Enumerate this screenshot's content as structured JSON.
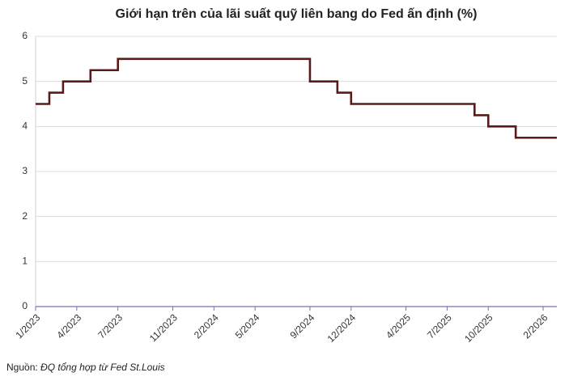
{
  "chart_data": {
    "type": "line",
    "title": "Giới hạn trên của lãi suất quỹ liên bang do Fed ấn định (%)",
    "x": [
      "1/2023",
      "2/2023",
      "3/2023",
      "5/2023",
      "7/2023",
      "9/2024",
      "11/2024",
      "12/2024",
      "9/2025",
      "10/2025",
      "12/2025",
      "3/2026"
    ],
    "series": [
      {
        "name": "Giới hạn trên",
        "color": "#5b1a1a",
        "values": [
          4.5,
          4.75,
          5.0,
          5.25,
          5.5,
          5.0,
          4.75,
          4.5,
          4.25,
          4.0,
          3.75,
          3.75
        ]
      }
    ],
    "step": true,
    "xlim": [
      "1/2023",
      "3/2026"
    ],
    "xticks": [
      "1/2023",
      "4/2023",
      "7/2023",
      "11/2023",
      "2/2024",
      "5/2024",
      "9/2024",
      "12/2024",
      "4/2025",
      "7/2025",
      "10/2025",
      "2/2026"
    ],
    "ylim": [
      0,
      6
    ],
    "yticks": [
      0,
      1,
      2,
      3,
      4,
      5,
      6
    ],
    "grid": true,
    "source_label": "Nguồn:",
    "source": "ĐQ tổng hợp từ Fed St.Louis"
  }
}
